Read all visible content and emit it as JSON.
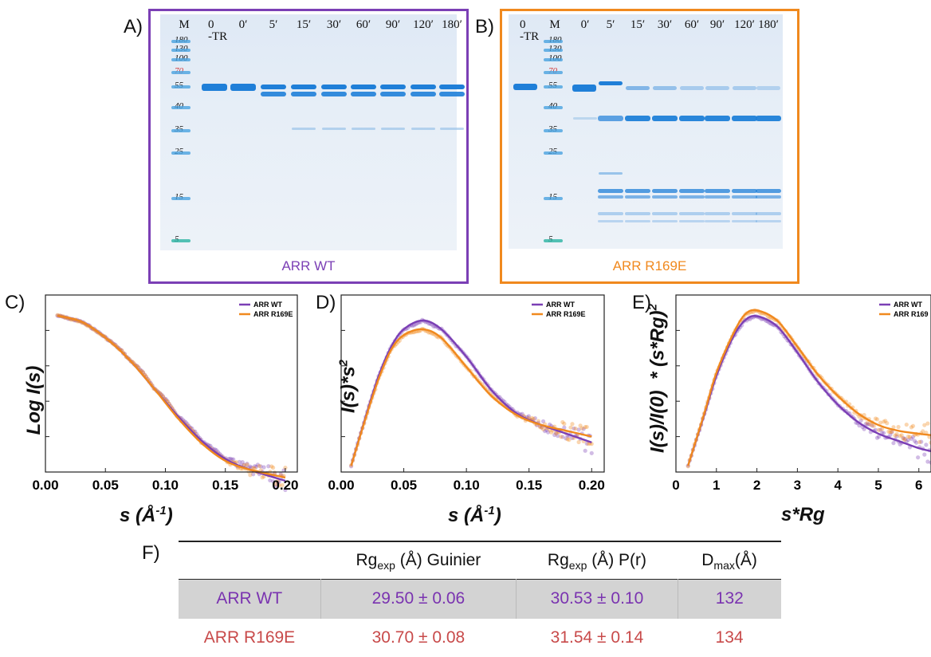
{
  "panels": {
    "A": "A)",
    "B": "B)",
    "C": "C)",
    "D": "D)",
    "E": "E)",
    "F": "F)"
  },
  "colors": {
    "wt": "#7b3fb5",
    "r169e": "#f0891e",
    "tbl_wt": "#7a33b0",
    "tbl_r": "#c84a4a"
  },
  "gelA": {
    "caption": "ARR WT",
    "lanes": [
      "M",
      "0\n-TR",
      "0′",
      "5′",
      "15′",
      "30′",
      "60′",
      "90′",
      "120′",
      "180′"
    ],
    "markers": [
      "180",
      "130",
      "100",
      "70",
      "55",
      "40",
      "35",
      "25",
      "15",
      "5"
    ]
  },
  "gelB": {
    "caption": "ARR R169E",
    "lanes": [
      "0\n-TR",
      "M",
      "0′",
      "5′",
      "15′",
      "30′",
      "60′",
      "90′",
      "120′",
      "180′"
    ],
    "markers": [
      "180",
      "130",
      "100",
      "70",
      "55",
      "40",
      "35",
      "25",
      "15",
      "5"
    ]
  },
  "plotC": {
    "ylabel": "Log I(s)",
    "xlabel_base": "s (Å",
    "xlabel_sup": "-1",
    "xlabel_end": ")",
    "legend": [
      "ARR WT",
      "ARR R169E"
    ],
    "ticks": [
      "0.00",
      "0.05",
      "0.10",
      "0.15",
      "0.20"
    ]
  },
  "plotD": {
    "ylabel_base": "I(s)*s",
    "ylabel_sup": "2",
    "xlabel_base": "s (Å",
    "xlabel_sup": "-1",
    "xlabel_end": ")",
    "legend": [
      "ARR WT",
      "ARR R169E"
    ],
    "ticks": [
      "0.00",
      "0.05",
      "0.10",
      "0.15",
      "0.20"
    ]
  },
  "plotE": {
    "ylabel_base": "I(s)/I(0)  * (s*Rg)",
    "ylabel_sup": "2",
    "xlabel": "s*Rg",
    "legend": [
      "ARR WT",
      "ARR R169"
    ],
    "ticks": [
      "0",
      "1",
      "2",
      "3",
      "4",
      "5",
      "6"
    ]
  },
  "chart_data": [
    {
      "type": "line",
      "id": "C",
      "ylabel": "Log I(s)",
      "xlabel": "s (Å-1)",
      "ylog": true,
      "xlim": [
        0,
        0.21
      ],
      "series": [
        {
          "name": "ARR WT",
          "x": [
            0.01,
            0.03,
            0.05,
            0.07,
            0.09,
            0.11,
            0.13,
            0.15,
            0.17,
            0.2
          ],
          "y": [
            1.0,
            0.85,
            0.55,
            0.3,
            0.14,
            0.065,
            0.033,
            0.02,
            0.015,
            0.011
          ]
        },
        {
          "name": "ARR R169E",
          "x": [
            0.01,
            0.03,
            0.05,
            0.07,
            0.09,
            0.11,
            0.13,
            0.15,
            0.17,
            0.2
          ],
          "y": [
            1.0,
            0.85,
            0.55,
            0.3,
            0.14,
            0.062,
            0.031,
            0.019,
            0.015,
            0.012
          ]
        }
      ]
    },
    {
      "type": "line",
      "id": "D",
      "ylabel": "I(s)*s2",
      "xlabel": "s (Å-1)",
      "xlim": [
        0,
        0.21
      ],
      "series": [
        {
          "name": "ARR WT",
          "x": [
            0.008,
            0.02,
            0.03,
            0.04,
            0.05,
            0.065,
            0.08,
            0.1,
            0.12,
            0.14,
            0.16,
            0.18,
            0.2
          ],
          "y": [
            0.0,
            0.35,
            0.62,
            0.82,
            0.94,
            1.0,
            0.94,
            0.75,
            0.52,
            0.36,
            0.28,
            0.22,
            0.16
          ]
        },
        {
          "name": "ARR R169E",
          "x": [
            0.008,
            0.02,
            0.03,
            0.04,
            0.05,
            0.065,
            0.08,
            0.1,
            0.12,
            0.14,
            0.16,
            0.18,
            0.2
          ],
          "y": [
            0.0,
            0.34,
            0.6,
            0.8,
            0.9,
            0.94,
            0.88,
            0.68,
            0.48,
            0.35,
            0.28,
            0.24,
            0.2
          ]
        }
      ]
    },
    {
      "type": "line",
      "id": "E",
      "ylabel": "I(s)/I(0) * (s*Rg)2",
      "xlabel": "s*Rg",
      "xlim": [
        0,
        6.3
      ],
      "series": [
        {
          "name": "ARR WT",
          "x": [
            0.3,
            0.7,
            1.0,
            1.4,
            1.7,
            2.0,
            2.5,
            3.0,
            3.5,
            4.0,
            4.5,
            5.0,
            5.5,
            6.0,
            6.3
          ],
          "y": [
            0.0,
            0.35,
            0.62,
            0.88,
            1.0,
            1.03,
            0.96,
            0.78,
            0.58,
            0.42,
            0.3,
            0.22,
            0.17,
            0.12,
            0.1
          ]
        },
        {
          "name": "ARR R169",
          "x": [
            0.3,
            0.7,
            1.0,
            1.4,
            1.7,
            2.0,
            2.5,
            3.0,
            3.5,
            4.0,
            4.5,
            5.0,
            5.5,
            6.0,
            6.3
          ],
          "y": [
            0.0,
            0.36,
            0.64,
            0.9,
            1.04,
            1.07,
            1.0,
            0.82,
            0.63,
            0.48,
            0.36,
            0.28,
            0.24,
            0.22,
            0.21
          ]
        }
      ]
    }
  ],
  "table": {
    "headers": [
      {
        "base": "Rg",
        "sub": "exp",
        "rest": " (Å) Guinier"
      },
      {
        "base": "Rg",
        "sub": "exp",
        "rest": " (Å) P(r)"
      },
      {
        "base": "D",
        "sub": "max",
        "rest": "(Å)"
      }
    ],
    "rows": [
      {
        "name": "ARR WT",
        "guinier": "29.50 ± 0.06",
        "pr": "30.53 ± 0.10",
        "dmax": "132"
      },
      {
        "name": "ARR R169E",
        "guinier": "30.70 ± 0.08",
        "pr": "31.54 ± 0.14",
        "dmax": "134"
      }
    ]
  }
}
